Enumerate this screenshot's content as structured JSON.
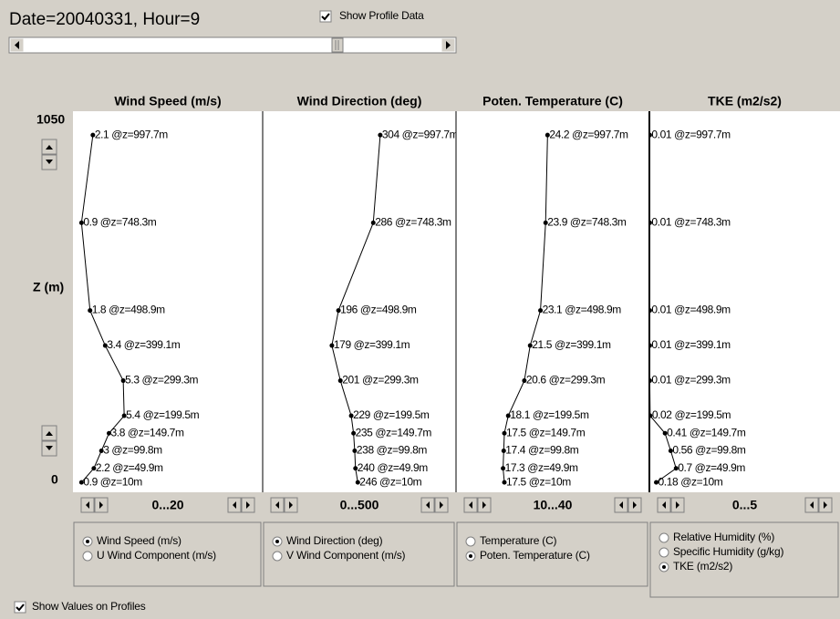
{
  "header": {
    "title": "Date=20040331, Hour=9",
    "show_profile_data": {
      "label": "Show Profile Data",
      "checked": true
    }
  },
  "z_axis": {
    "ylabel": "Z (m)",
    "ylim": [
      0,
      1050
    ],
    "yticks": [
      0,
      1050
    ]
  },
  "chart_data": [
    {
      "type": "line",
      "title": "Wind Speed (m/s)",
      "range_label": "0...20",
      "xlim": [
        0,
        20
      ],
      "x": [
        2.1,
        0.9,
        1.8,
        3.4,
        5.3,
        5.4,
        3.8,
        3,
        2.2,
        0.9
      ],
      "y": [
        997.7,
        748.3,
        498.9,
        399.1,
        299.3,
        199.5,
        149.7,
        99.8,
        49.9,
        10
      ],
      "value_labels": [
        "2.1 @z=997.7m",
        "0.9 @z=748.3m",
        "1.8 @z=498.9m",
        "3.4 @z=399.1m",
        "5.3 @z=299.3m",
        "5.4 @z=199.5m",
        "3.8 @z=149.7m",
        "3 @z=99.8m",
        "2.2 @z=49.9m",
        "0.9 @z=10m"
      ]
    },
    {
      "type": "line",
      "title": "Wind Direction (deg)",
      "range_label": "0...500",
      "xlim": [
        0,
        500
      ],
      "x": [
        304,
        286,
        196,
        179,
        201,
        229,
        235,
        238,
        240,
        246
      ],
      "y": [
        997.7,
        748.3,
        498.9,
        399.1,
        299.3,
        199.5,
        149.7,
        99.8,
        49.9,
        10
      ],
      "value_labels": [
        "304 @z=997.7m",
        "286 @z=748.3m",
        "196 @z=498.9m",
        "179 @z=399.1m",
        "201 @z=299.3m",
        "229 @z=199.5m",
        "235 @z=149.7m",
        "238 @z=99.8m",
        "240 @z=49.9m",
        "246 @z=10m"
      ]
    },
    {
      "type": "line",
      "title": "Poten. Temperature (C)",
      "range_label": "10...40",
      "xlim": [
        10,
        40
      ],
      "x": [
        24.2,
        23.9,
        23.1,
        21.5,
        20.6,
        18.1,
        17.5,
        17.4,
        17.3,
        17.5
      ],
      "y": [
        997.7,
        748.3,
        498.9,
        399.1,
        299.3,
        199.5,
        149.7,
        99.8,
        49.9,
        10
      ],
      "value_labels": [
        "24.2 @z=997.7m",
        "23.9 @z=748.3m",
        "23.1 @z=498.9m",
        "21.5 @z=399.1m",
        "20.6 @z=299.3m",
        "18.1 @z=199.5m",
        "17.5 @z=149.7m",
        "17.4 @z=99.8m",
        "17.3 @z=49.9m",
        "17.5 @z=10m"
      ]
    },
    {
      "type": "line",
      "title": "TKE (m2/s2)",
      "range_label": "0...5",
      "xlim": [
        0,
        5
      ],
      "x": [
        0.01,
        0.01,
        0.01,
        0.01,
        0.01,
        0.02,
        0.41,
        0.56,
        0.7,
        0.18
      ],
      "y": [
        997.7,
        748.3,
        498.9,
        399.1,
        299.3,
        199.5,
        149.7,
        99.8,
        49.9,
        10
      ],
      "value_labels": [
        "0.01 @z=997.7m",
        "0.01 @z=748.3m",
        "0.01 @z=498.9m",
        "0.01 @z=399.1m",
        "0.01 @z=299.3m",
        "0.02 @z=199.5m",
        "0.41 @z=149.7m",
        "0.56 @z=99.8m",
        "0.7 @z=49.9m",
        "0.18 @z=10m"
      ]
    }
  ],
  "controls": [
    {
      "options": [
        "Wind Speed (m/s)",
        "U Wind Component (m/s)"
      ],
      "selected": 0
    },
    {
      "options": [
        "Wind Direction (deg)",
        "V Wind Component (m/s)"
      ],
      "selected": 0
    },
    {
      "options": [
        "Temperature (C)",
        "Poten. Temperature (C)"
      ],
      "selected": 1
    },
    {
      "options": [
        "Relative Humidity (%)",
        "Specific Humidity (g/kg)",
        "TKE (m2/s2)"
      ],
      "selected": 2
    }
  ],
  "show_values": {
    "label": "Show Values on Profiles",
    "checked": true
  }
}
